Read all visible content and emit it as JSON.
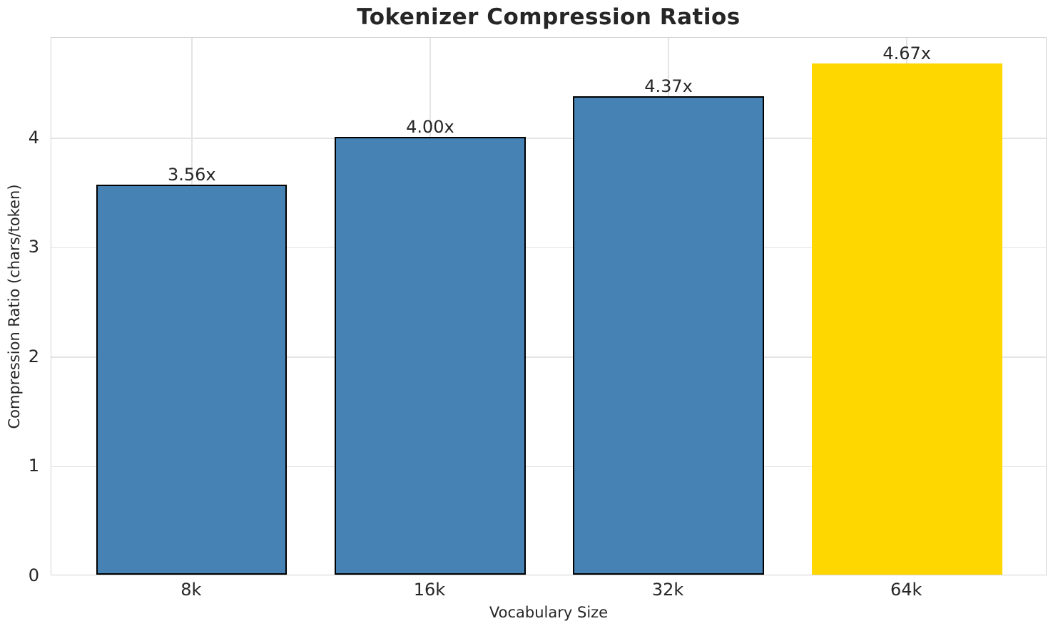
{
  "chart_data": {
    "type": "bar",
    "title": "Tokenizer Compression Ratios",
    "xlabel": "Vocabulary Size",
    "ylabel": "Compression Ratio (chars/token)",
    "categories": [
      "8k",
      "16k",
      "32k",
      "64k"
    ],
    "values": [
      3.56,
      4.0,
      4.37,
      4.67
    ],
    "bar_labels": [
      "3.56x",
      "4.00x",
      "4.37x",
      "4.67x"
    ],
    "yticks": [
      0,
      1,
      2,
      3,
      4
    ],
    "ylim": [
      0,
      4.918
    ],
    "grid": "both",
    "legend": "none",
    "highlighted_category": "64k",
    "bar_colors": [
      "#4682B4",
      "#4682B4",
      "#4682B4",
      "#FFD700"
    ],
    "bar_edge_colors": [
      "#000000",
      "#000000",
      "#000000",
      "none"
    ],
    "colors": {
      "bar_default": "#4682B4",
      "bar_highlight": "#FFD700",
      "bar_edge": "#000000",
      "grid": "#e4e4e4",
      "spine": "#d2d2d2",
      "text": "#262626",
      "background": "#ffffff"
    }
  }
}
